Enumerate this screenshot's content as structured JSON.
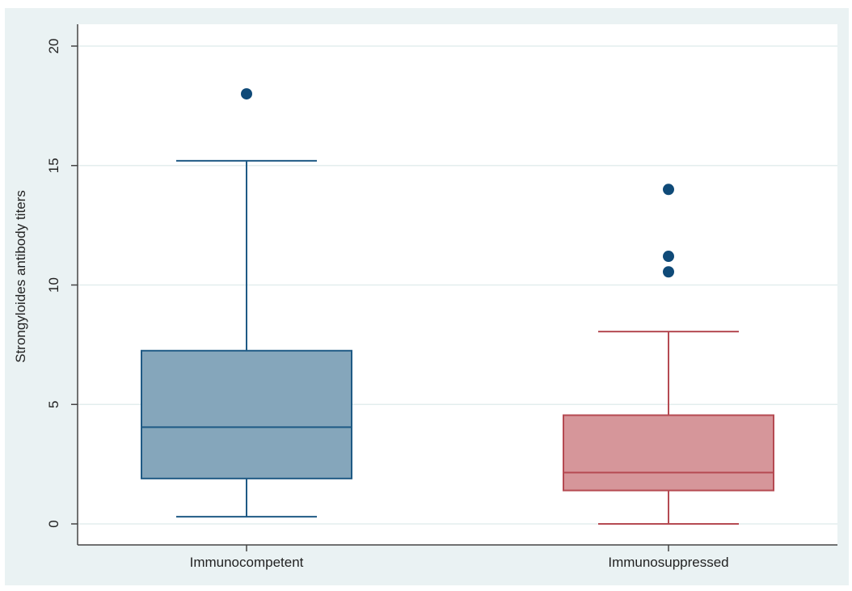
{
  "chart_data": {
    "type": "box",
    "ylabel": "Strongyloides antibody titers",
    "ylim": [
      0,
      20
    ],
    "yticks": [
      0,
      5,
      10,
      15,
      20
    ],
    "grid": true,
    "categories": [
      "Immunocompetent",
      "Immunosuppressed"
    ],
    "boxes": [
      {
        "category": "Immunocompetent",
        "whisker_low": 0.3,
        "q1": 1.9,
        "median": 4.05,
        "q3": 7.25,
        "whisker_high": 15.2,
        "outliers": [
          18.0
        ],
        "fill_color": "#85a6bb",
        "line_color": "#1f5a85",
        "outlier_color": "#0f4a78"
      },
      {
        "category": "Immunosuppressed",
        "whisker_low": 0.0,
        "q1": 1.4,
        "median": 2.15,
        "q3": 4.55,
        "whisker_high": 8.05,
        "outliers": [
          10.55,
          11.2,
          14.0
        ],
        "fill_color": "#d6969a",
        "line_color": "#b54a52",
        "outlier_color": "#0f4a78"
      }
    ],
    "colors": {
      "background": "#eaf2f3",
      "plot_area": "#ffffff",
      "grid": "#e3eeee",
      "axis": "#444444"
    }
  }
}
